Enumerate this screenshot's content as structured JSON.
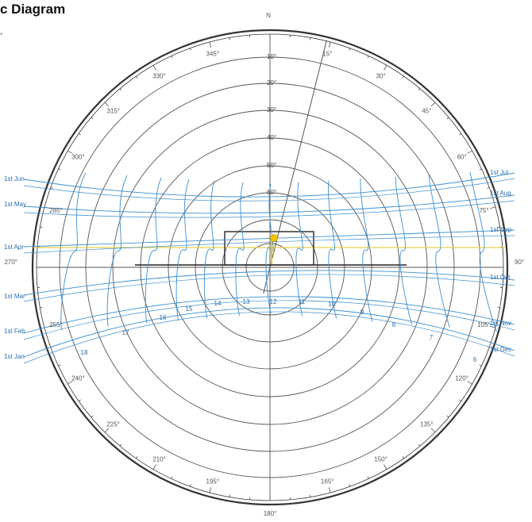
{
  "title": "c Diagram",
  "subtitle": "°",
  "colors": {
    "ring": "#333333",
    "grid": "#555555",
    "path": "#3a8fd0",
    "sun": "#f2c200",
    "summer": "#e8d24a"
  },
  "compass": {
    "north": "N",
    "east": "90°",
    "west": "270°",
    "south": "180°"
  },
  "azimuths": [
    {
      "deg": 15,
      "label": "15°"
    },
    {
      "deg": 30,
      "label": "30°"
    },
    {
      "deg": 45,
      "label": "45°"
    },
    {
      "deg": 60,
      "label": "60°"
    },
    {
      "deg": 75,
      "label": "75°"
    },
    {
      "deg": 105,
      "label": "105°"
    },
    {
      "deg": 120,
      "label": "120°"
    },
    {
      "deg": 135,
      "label": "135°"
    },
    {
      "deg": 150,
      "label": "150°"
    },
    {
      "deg": 165,
      "label": "165°"
    },
    {
      "deg": 195,
      "label": "195°"
    },
    {
      "deg": 210,
      "label": "210°"
    },
    {
      "deg": 225,
      "label": "225°"
    },
    {
      "deg": 240,
      "label": "240°"
    },
    {
      "deg": 255,
      "label": "255°"
    },
    {
      "deg": 285,
      "label": "285°"
    },
    {
      "deg": 300,
      "label": "300°"
    },
    {
      "deg": 315,
      "label": "315°"
    },
    {
      "deg": 330,
      "label": "330°"
    },
    {
      "deg": 345,
      "label": "345°"
    }
  ],
  "altitudes": [
    "10°",
    "20°",
    "30°",
    "40°",
    "50°",
    "60°"
  ],
  "dates_left": [
    "1st Jun",
    "1st May",
    "1st Apr",
    "1st Mar",
    "1st Feb",
    "1st Jan"
  ],
  "dates_right": [
    "1st Jul",
    "1st Aug",
    "1st Sep",
    "1st Oct",
    "1st Nov",
    "1st Dec"
  ],
  "hours": [
    "18",
    "17",
    "16",
    "15",
    "14",
    "13",
    "12",
    "11",
    "10",
    "9",
    "8",
    "7",
    "6"
  ]
}
